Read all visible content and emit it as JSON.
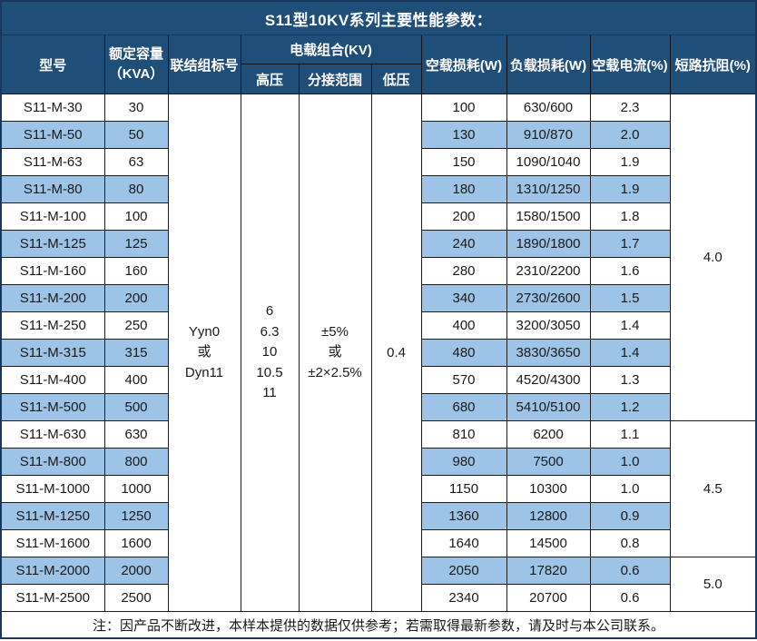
{
  "title": "S11型10KV系列主要性能参数：",
  "colors": {
    "header_bg": "#1F4E79",
    "stripe_bg": "#9DC3E6",
    "outer_border": "#17375E",
    "grid_border": "#1a1a1a",
    "header_text": "#ffffff",
    "body_text": "#1a1a1a"
  },
  "table": {
    "headers": {
      "model": "型号",
      "capacity": "额定容量\n（KVA）",
      "vector_group": "联结组标号",
      "voltage_combo": "电载组合(KV)",
      "hv": "高压",
      "tap_range": "分接范围",
      "lv": "低压",
      "no_load_loss": "空载损耗(W)",
      "load_loss": "负载损耗(W)",
      "no_load_current": "空载电流(%)",
      "impedance": "短路抗阻(%)"
    },
    "merged": {
      "vector_group_value": "Yyn0\n或\nDyn11",
      "hv_value": "6\n6.3\n10\n10.5\n11",
      "tap_range_value": "±5%\n或\n±2×2.5%",
      "lv_value": "0.4",
      "impedance_groups": [
        {
          "value": "4.0",
          "span": 12
        },
        {
          "value": "4.5",
          "span": 5
        },
        {
          "value": "5.0",
          "span": 2
        }
      ]
    },
    "rows": [
      {
        "model": "S11-M-30",
        "kva": "30",
        "no_load": "100",
        "load": "630/600",
        "current": "2.3"
      },
      {
        "model": "S11-M-50",
        "kva": "50",
        "no_load": "130",
        "load": "910/870",
        "current": "2.0"
      },
      {
        "model": "S11-M-63",
        "kva": "63",
        "no_load": "150",
        "load": "1090/1040",
        "current": "1.9"
      },
      {
        "model": "S11-M-80",
        "kva": "80",
        "no_load": "180",
        "load": "1310/1250",
        "current": "1.9"
      },
      {
        "model": "S11-M-100",
        "kva": "100",
        "no_load": "200",
        "load": "1580/1500",
        "current": "1.8"
      },
      {
        "model": "S11-M-125",
        "kva": "125",
        "no_load": "240",
        "load": "1890/1800",
        "current": "1.7"
      },
      {
        "model": "S11-M-160",
        "kva": "160",
        "no_load": "280",
        "load": "2310/2200",
        "current": "1.6"
      },
      {
        "model": "S11-M-200",
        "kva": "200",
        "no_load": "340",
        "load": "2730/2600",
        "current": "1.5"
      },
      {
        "model": "S11-M-250",
        "kva": "250",
        "no_load": "400",
        "load": "3200/3050",
        "current": "1.4"
      },
      {
        "model": "S11-M-315",
        "kva": "315",
        "no_load": "480",
        "load": "3830/3650",
        "current": "1.4"
      },
      {
        "model": "S11-M-400",
        "kva": "400",
        "no_load": "570",
        "load": "4520/4300",
        "current": "1.3"
      },
      {
        "model": "S11-M-500",
        "kva": "500",
        "no_load": "680",
        "load": "5410/5100",
        "current": "1.2"
      },
      {
        "model": "S11-M-630",
        "kva": "630",
        "no_load": "810",
        "load": "6200",
        "current": "1.1"
      },
      {
        "model": "S11-M-800",
        "kva": "800",
        "no_load": "980",
        "load": "7500",
        "current": "1.0"
      },
      {
        "model": "S11-M-1000",
        "kva": "1000",
        "no_load": "1150",
        "load": "10300",
        "current": "1.0"
      },
      {
        "model": "S11-M-1250",
        "kva": "1250",
        "no_load": "1360",
        "load": "12800",
        "current": "0.9"
      },
      {
        "model": "S11-M-1600",
        "kva": "1600",
        "no_load": "1640",
        "load": "14500",
        "current": "0.8"
      },
      {
        "model": "S11-M-2000",
        "kva": "2000",
        "no_load": "2050",
        "load": "17820",
        "current": "0.6"
      },
      {
        "model": "S11-M-2500",
        "kva": "2500",
        "no_load": "2340",
        "load": "20700",
        "current": "0.6"
      }
    ]
  },
  "footer_note": "注：因产品不断改进，本样本提供的数据仅供参考；若需取得最新参数，请及时与本公司联系。"
}
